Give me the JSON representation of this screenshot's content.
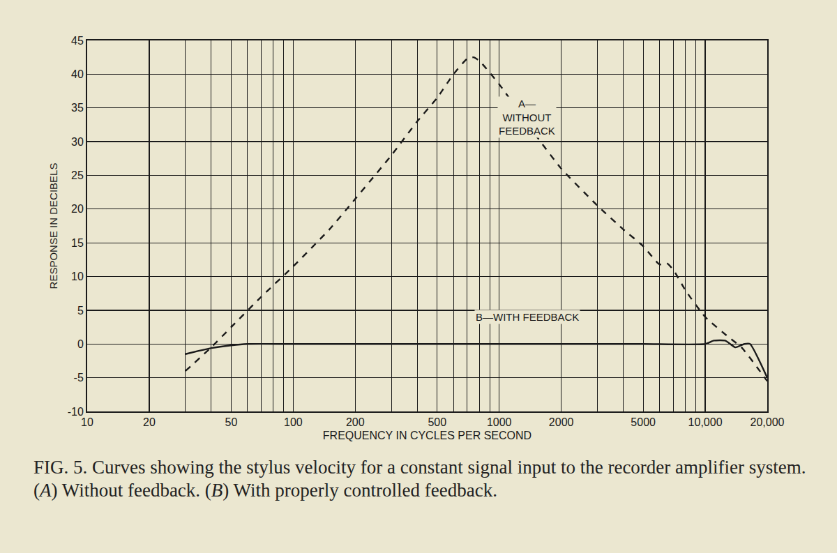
{
  "chart_data": {
    "type": "line",
    "caption": "FIG. 5. Curves showing the stylus velocity for a constant signal input to the recorder amplifier system. (A) Without feedback. (B) With properly controlled feedback.",
    "x_label": "FREQUENCY IN CYCLES PER SECOND",
    "y_label": "RESPONSE IN DECIBELS",
    "log": "x",
    "grid": true,
    "xlim": [
      10,
      20000
    ],
    "xticks": [
      10,
      20,
      50,
      100,
      200,
      500,
      1000,
      2000,
      5000,
      {
        "value": 10000,
        "label": "10,000"
      },
      {
        "value": 20000,
        "label": "20,000"
      }
    ],
    "ylim": [
      -10,
      45
    ],
    "yticks": [
      -10,
      -5,
      0,
      5,
      10,
      15,
      20,
      25,
      30,
      35,
      40,
      45
    ],
    "series": [
      {
        "name": "A—\nWITHOUT\nFEEDBACK",
        "color": "#1a1a1a",
        "line_style": "dashed",
        "x": [
          30,
          40,
          50,
          70,
          100,
          150,
          200,
          300,
          400,
          500,
          600,
          700,
          750,
          800,
          1000,
          1500,
          2000,
          3000,
          4000,
          5000,
          6000,
          6500,
          7000,
          8000,
          10000,
          13000,
          15000,
          20000
        ],
        "values": [
          -4,
          -0.5,
          2.5,
          7,
          11.5,
          17,
          21.5,
          28,
          33,
          36.5,
          40,
          42.3,
          42.5,
          42,
          38.5,
          31,
          26,
          20.5,
          17,
          14.5,
          11.8,
          12,
          11,
          8,
          4,
          1,
          -0.5,
          -5.5
        ]
      },
      {
        "name": "B—WITH FEEDBACK",
        "color": "#1a1a1a",
        "line_style": "solid",
        "x": [
          30,
          35,
          40,
          50,
          60,
          100,
          1000,
          5000,
          10000,
          11000,
          12500,
          14000,
          15500,
          16500,
          20000
        ],
        "values": [
          -1.5,
          -1,
          -0.6,
          -0.2,
          0,
          0,
          0,
          0,
          0,
          0.5,
          0.5,
          -0.5,
          0,
          0,
          -5
        ]
      }
    ]
  }
}
